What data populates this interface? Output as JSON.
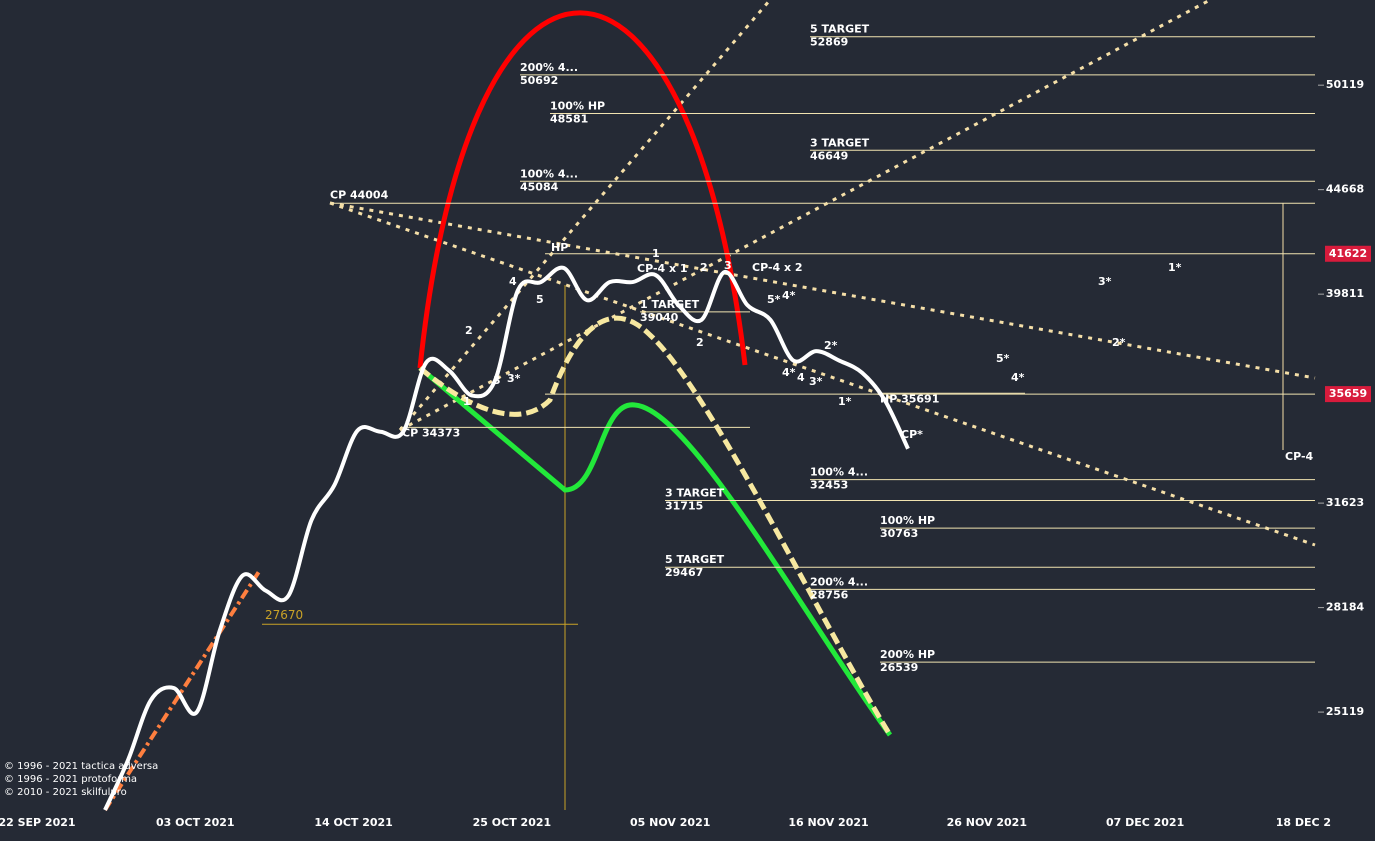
{
  "chart_data": {
    "type": "line",
    "log_scale": true,
    "ylim": [
      22550,
      55050
    ],
    "yticks": [
      25119,
      28184,
      31623,
      39811,
      44668,
      50119
    ],
    "xticks": [
      "22 SEP 2021",
      "03 OCT 2021",
      "14 OCT 2021",
      "25 OCT 2021",
      "05 NOV 2021",
      "16 NOV 2021",
      "26 NOV 2021",
      "07 DEC 2021",
      "18 DEC 2"
    ],
    "series": [
      {
        "color": "#ffffff",
        "values": [
          22550,
          23820,
          25454,
          25794,
          25119,
          27477,
          29197,
          28718,
          28560,
          31035,
          32258,
          34250,
          34210,
          34210,
          36920,
          36595,
          35600,
          36200,
          39987,
          40344,
          40974,
          39550,
          40344,
          40344,
          40657,
          39331,
          38700,
          40790,
          39331,
          38700,
          37003,
          37390,
          37003,
          36508,
          35403,
          33575
        ]
      }
    ],
    "levels": [
      {
        "label": "5 TARGET",
        "value": 52869
      },
      {
        "label": "200%  4...",
        "value": 50692
      },
      {
        "label": "100% HP",
        "value": 48581
      },
      {
        "label": "3 TARGET",
        "value": 46649
      },
      {
        "label": "100%  4...",
        "value": 45084
      },
      {
        "label": "1 TARGET",
        "value": 39040
      },
      {
        "label": "100%  4...",
        "value": 32453
      },
      {
        "label": "3 TARGET",
        "value": 31715
      },
      {
        "label": "100% HP",
        "value": 30763
      },
      {
        "label": "5 TARGET",
        "value": 29467
      },
      {
        "label": "200%  4...",
        "value": 28756
      },
      {
        "label": "200% HP",
        "value": 26539
      }
    ],
    "marked_levels": [
      {
        "label": "CP 44004",
        "value": 44004
      },
      {
        "label": "CP 34373",
        "value": 34373
      },
      {
        "label": "HP 35691",
        "value": 35691
      },
      {
        "label": "27670",
        "value": 27670
      }
    ],
    "price_tags": [
      41622,
      35659
    ],
    "annotations": [
      "HP",
      "1",
      "2",
      "3",
      "CP-4 x 1",
      "CP-4 x 2",
      "4",
      "5",
      "2",
      "1",
      "3",
      "3*",
      "2",
      "5*",
      "4*",
      "4*",
      "4",
      "3*",
      "2*",
      "1*",
      "5*",
      "4*",
      "2*",
      "3*",
      "1*",
      "CP*",
      "CP-4"
    ],
    "copyright": [
      "© 1996 - 2021 tactica adversa",
      "© 1996 - 2021 protoforma",
      "© 2010 - 2021 skilfulpro"
    ]
  }
}
